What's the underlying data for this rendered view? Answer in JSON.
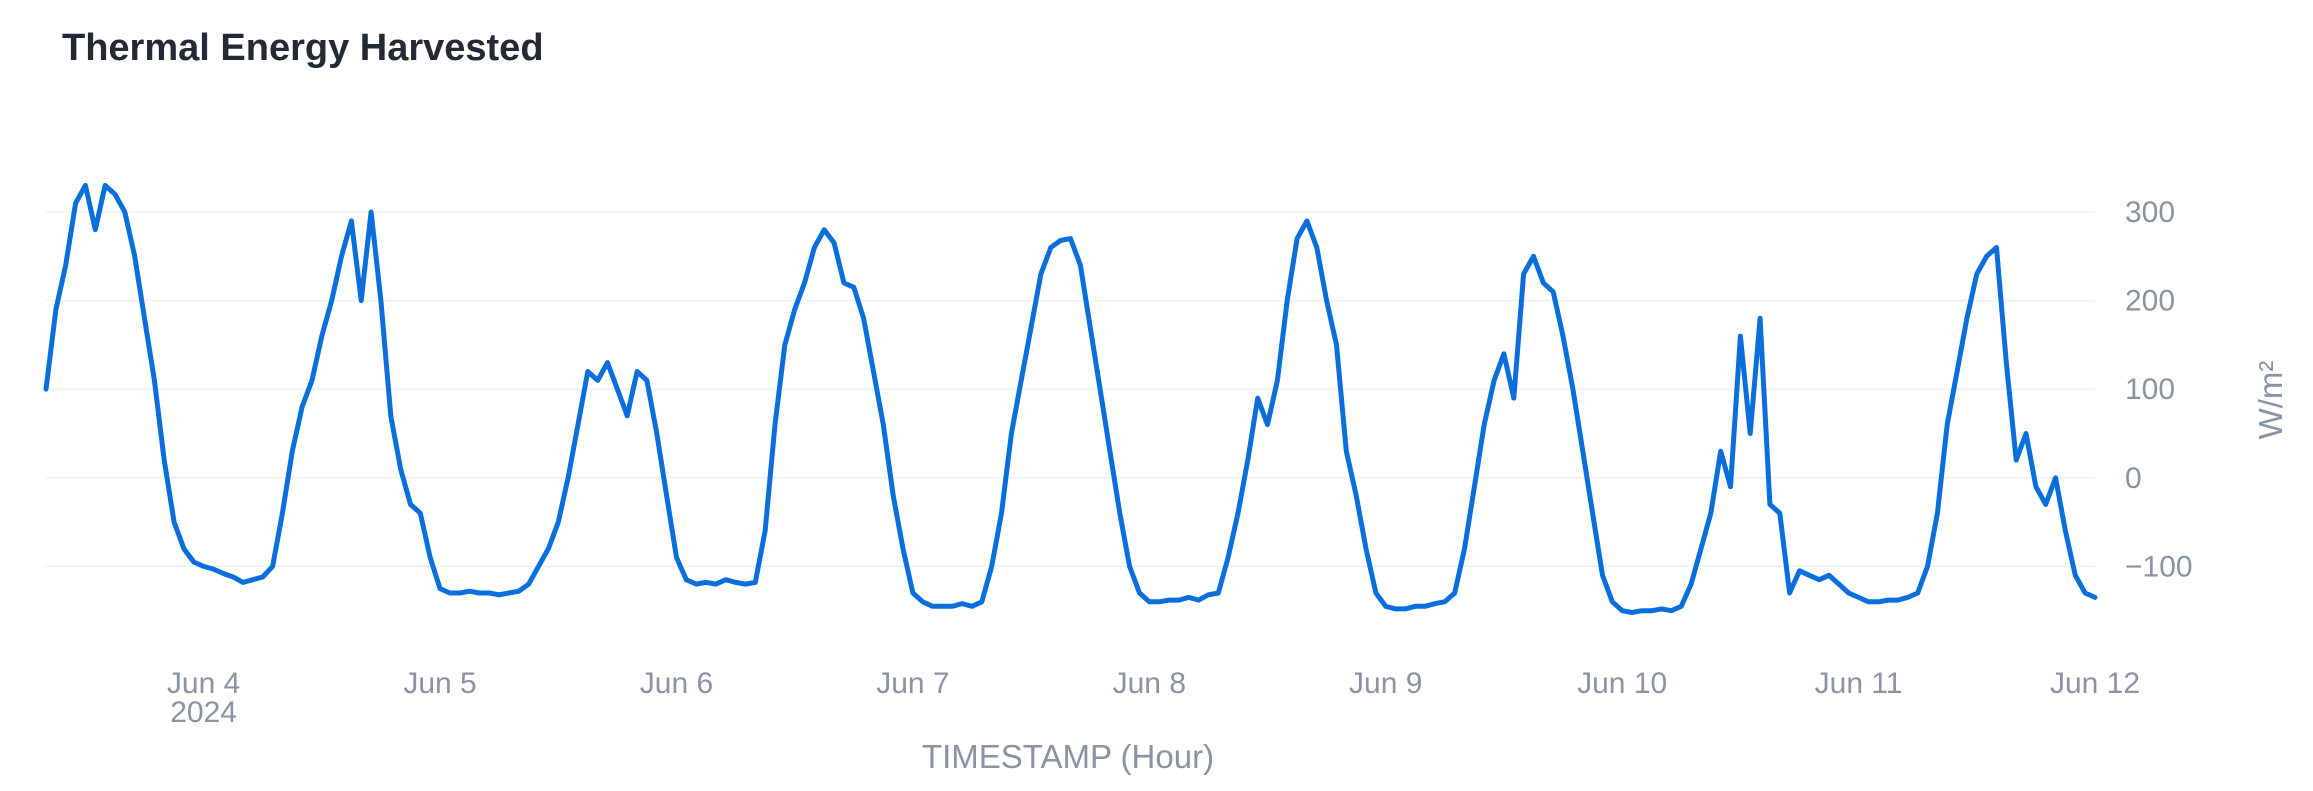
{
  "chart_data": {
    "type": "line",
    "title": "Thermal Energy Harvested",
    "xlabel": "TIMESTAMP (Hour)",
    "ylabel": "W/m²",
    "x_range": [
      "2024-06-03T08:00",
      "2024-06-12T00:00"
    ],
    "ylim": [
      -200,
      370
    ],
    "y_ticks": [
      -100,
      0,
      100,
      200,
      300
    ],
    "y_tick_labels": [
      "−100",
      "0",
      "100",
      "200",
      "300"
    ],
    "y_axis_side": "right",
    "x_ticks": [
      {
        "date": "2024-06-04",
        "label": "Jun 4",
        "sublabel": "2024"
      },
      {
        "date": "2024-06-05",
        "label": "Jun 5",
        "sublabel": ""
      },
      {
        "date": "2024-06-06",
        "label": "Jun 6",
        "sublabel": ""
      },
      {
        "date": "2024-06-07",
        "label": "Jun 7",
        "sublabel": ""
      },
      {
        "date": "2024-06-08",
        "label": "Jun 8",
        "sublabel": ""
      },
      {
        "date": "2024-06-09",
        "label": "Jun 9",
        "sublabel": ""
      },
      {
        "date": "2024-06-10",
        "label": "Jun 10",
        "sublabel": ""
      },
      {
        "date": "2024-06-11",
        "label": "Jun 11",
        "sublabel": ""
      },
      {
        "date": "2024-06-12",
        "label": "Jun 12",
        "sublabel": ""
      }
    ],
    "grid": true,
    "color": "#0a6fdc",
    "series": [
      {
        "name": "",
        "x": [
          "2024-06-03T08:00",
          "2024-06-03T09:00",
          "2024-06-03T10:00",
          "2024-06-03T11:00",
          "2024-06-03T12:00",
          "2024-06-03T13:00",
          "2024-06-03T14:00",
          "2024-06-03T15:00",
          "2024-06-03T16:00",
          "2024-06-03T17:00",
          "2024-06-03T18:00",
          "2024-06-03T19:00",
          "2024-06-03T20:00",
          "2024-06-03T21:00",
          "2024-06-03T22:00",
          "2024-06-03T23:00",
          "2024-06-04T00:00",
          "2024-06-04T01:00",
          "2024-06-04T02:00",
          "2024-06-04T03:00",
          "2024-06-04T04:00",
          "2024-06-04T05:00",
          "2024-06-04T06:00",
          "2024-06-04T07:00",
          "2024-06-04T08:00",
          "2024-06-04T09:00",
          "2024-06-04T10:00",
          "2024-06-04T11:00",
          "2024-06-04T12:00",
          "2024-06-04T13:00",
          "2024-06-04T14:00",
          "2024-06-04T15:00",
          "2024-06-04T16:00",
          "2024-06-04T17:00",
          "2024-06-04T18:00",
          "2024-06-04T19:00",
          "2024-06-04T20:00",
          "2024-06-04T21:00",
          "2024-06-04T22:00",
          "2024-06-04T23:00",
          "2024-06-05T00:00",
          "2024-06-05T01:00",
          "2024-06-05T02:00",
          "2024-06-05T03:00",
          "2024-06-05T04:00",
          "2024-06-05T05:00",
          "2024-06-05T06:00",
          "2024-06-05T07:00",
          "2024-06-05T08:00",
          "2024-06-05T09:00",
          "2024-06-05T10:00",
          "2024-06-05T11:00",
          "2024-06-05T12:00",
          "2024-06-05T13:00",
          "2024-06-05T14:00",
          "2024-06-05T15:00",
          "2024-06-05T16:00",
          "2024-06-05T17:00",
          "2024-06-05T18:00",
          "2024-06-05T19:00",
          "2024-06-05T20:00",
          "2024-06-05T21:00",
          "2024-06-05T22:00",
          "2024-06-05T23:00",
          "2024-06-06T00:00",
          "2024-06-06T01:00",
          "2024-06-06T02:00",
          "2024-06-06T03:00",
          "2024-06-06T04:00",
          "2024-06-06T05:00",
          "2024-06-06T06:00",
          "2024-06-06T07:00",
          "2024-06-06T08:00",
          "2024-06-06T09:00",
          "2024-06-06T10:00",
          "2024-06-06T11:00",
          "2024-06-06T12:00",
          "2024-06-06T13:00",
          "2024-06-06T14:00",
          "2024-06-06T15:00",
          "2024-06-06T16:00",
          "2024-06-06T17:00",
          "2024-06-06T18:00",
          "2024-06-06T19:00",
          "2024-06-06T20:00",
          "2024-06-06T21:00",
          "2024-06-06T22:00",
          "2024-06-06T23:00",
          "2024-06-07T00:00",
          "2024-06-07T01:00",
          "2024-06-07T02:00",
          "2024-06-07T03:00",
          "2024-06-07T04:00",
          "2024-06-07T05:00",
          "2024-06-07T06:00",
          "2024-06-07T07:00",
          "2024-06-07T08:00",
          "2024-06-07T09:00",
          "2024-06-07T10:00",
          "2024-06-07T11:00",
          "2024-06-07T12:00",
          "2024-06-07T13:00",
          "2024-06-07T14:00",
          "2024-06-07T15:00",
          "2024-06-07T16:00",
          "2024-06-07T17:00",
          "2024-06-07T18:00",
          "2024-06-07T19:00",
          "2024-06-07T20:00",
          "2024-06-07T21:00",
          "2024-06-07T22:00",
          "2024-06-07T23:00",
          "2024-06-08T00:00",
          "2024-06-08T01:00",
          "2024-06-08T02:00",
          "2024-06-08T03:00",
          "2024-06-08T04:00",
          "2024-06-08T05:00",
          "2024-06-08T06:00",
          "2024-06-08T07:00",
          "2024-06-08T08:00",
          "2024-06-08T09:00",
          "2024-06-08T10:00",
          "2024-06-08T11:00",
          "2024-06-08T12:00",
          "2024-06-08T13:00",
          "2024-06-08T14:00",
          "2024-06-08T15:00",
          "2024-06-08T16:00",
          "2024-06-08T17:00",
          "2024-06-08T18:00",
          "2024-06-08T19:00",
          "2024-06-08T20:00",
          "2024-06-08T21:00",
          "2024-06-08T22:00",
          "2024-06-08T23:00",
          "2024-06-09T00:00",
          "2024-06-09T01:00",
          "2024-06-09T02:00",
          "2024-06-09T03:00",
          "2024-06-09T04:00",
          "2024-06-09T05:00",
          "2024-06-09T06:00",
          "2024-06-09T07:00",
          "2024-06-09T08:00",
          "2024-06-09T09:00",
          "2024-06-09T10:00",
          "2024-06-09T11:00",
          "2024-06-09T12:00",
          "2024-06-09T13:00",
          "2024-06-09T14:00",
          "2024-06-09T15:00",
          "2024-06-09T16:00",
          "2024-06-09T17:00",
          "2024-06-09T18:00",
          "2024-06-09T19:00",
          "2024-06-09T20:00",
          "2024-06-09T21:00",
          "2024-06-09T22:00",
          "2024-06-09T23:00",
          "2024-06-10T00:00",
          "2024-06-10T01:00",
          "2024-06-10T02:00",
          "2024-06-10T03:00",
          "2024-06-10T04:00",
          "2024-06-10T05:00",
          "2024-06-10T06:00",
          "2024-06-10T07:00",
          "2024-06-10T08:00",
          "2024-06-10T09:00",
          "2024-06-10T10:00",
          "2024-06-10T11:00",
          "2024-06-10T12:00",
          "2024-06-10T13:00",
          "2024-06-10T14:00",
          "2024-06-10T15:00",
          "2024-06-10T16:00",
          "2024-06-10T17:00",
          "2024-06-10T18:00",
          "2024-06-10T19:00",
          "2024-06-10T20:00",
          "2024-06-10T21:00",
          "2024-06-10T22:00",
          "2024-06-10T23:00",
          "2024-06-11T00:00",
          "2024-06-11T01:00",
          "2024-06-11T02:00",
          "2024-06-11T03:00",
          "2024-06-11T04:00",
          "2024-06-11T05:00",
          "2024-06-11T06:00",
          "2024-06-11T07:00",
          "2024-06-11T08:00",
          "2024-06-11T09:00",
          "2024-06-11T10:00",
          "2024-06-11T11:00",
          "2024-06-11T12:00",
          "2024-06-11T13:00",
          "2024-06-11T14:00",
          "2024-06-11T15:00",
          "2024-06-11T16:00",
          "2024-06-11T17:00",
          "2024-06-11T18:00",
          "2024-06-11T19:00",
          "2024-06-11T20:00",
          "2024-06-11T21:00",
          "2024-06-11T22:00",
          "2024-06-11T23:00",
          "2024-06-12T00:00"
        ],
        "y": [
          100,
          190,
          240,
          310,
          330,
          280,
          330,
          320,
          300,
          250,
          180,
          110,
          20,
          -50,
          -80,
          -95,
          -100,
          -103,
          -108,
          -112,
          -118,
          -115,
          -112,
          -100,
          -40,
          30,
          80,
          110,
          160,
          200,
          250,
          290,
          200,
          300,
          200,
          70,
          10,
          -30,
          -40,
          -90,
          -125,
          -130,
          -130,
          -128,
          -130,
          -130,
          -132,
          -130,
          -128,
          -120,
          -100,
          -80,
          -50,
          0,
          60,
          120,
          110,
          130,
          100,
          70,
          120,
          110,
          50,
          -20,
          -90,
          -115,
          -120,
          -118,
          -120,
          -115,
          -118,
          -120,
          -118,
          -60,
          60,
          150,
          190,
          220,
          260,
          280,
          265,
          220,
          215,
          180,
          120,
          60,
          -20,
          -80,
          -130,
          -140,
          -145,
          -145,
          -145,
          -142,
          -145,
          -140,
          -100,
          -40,
          50,
          110,
          170,
          230,
          260,
          268,
          270,
          240,
          170,
          100,
          30,
          -40,
          -100,
          -130,
          -140,
          -140,
          -138,
          -138,
          -135,
          -138,
          -132,
          -130,
          -90,
          -40,
          20,
          90,
          60,
          110,
          200,
          270,
          290,
          260,
          200,
          150,
          30,
          -20,
          -80,
          -130,
          -145,
          -148,
          -148,
          -145,
          -145,
          -142,
          -140,
          -130,
          -80,
          -10,
          60,
          110,
          140,
          90,
          230,
          250,
          220,
          210,
          160,
          100,
          30,
          -40,
          -110,
          -140,
          -150,
          -152,
          -150,
          -150,
          -148,
          -150,
          -145,
          -120,
          -80,
          -40,
          30,
          -10,
          160,
          50,
          180,
          -30,
          -40,
          -130,
          -105,
          -110,
          -115,
          -110,
          -120,
          -130,
          -135,
          -140,
          -140,
          -138,
          -138,
          -135,
          -130,
          -100,
          -40,
          60,
          120,
          180,
          230,
          250,
          260,
          130,
          20,
          50,
          -10,
          -30,
          0,
          -60,
          -110,
          -130,
          -135
        ]
      }
    ]
  }
}
